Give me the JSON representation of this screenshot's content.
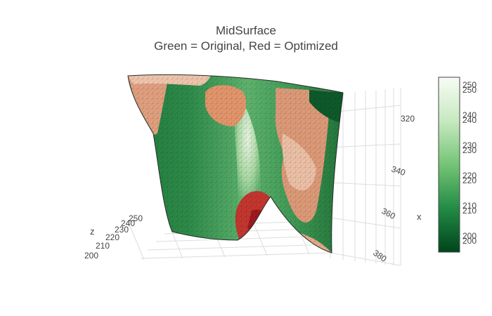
{
  "chart_data": {
    "type": "surface",
    "title_line_1": "MidSurface",
    "title_line_2": "Green = Original, Red = Optimized",
    "axes": {
      "x": {
        "label": "x",
        "ticks": [
          320,
          340,
          360,
          380
        ]
      },
      "y": {
        "label": "",
        "ticks": []
      },
      "z": {
        "label": "z",
        "ticks": [
          200,
          210,
          220,
          230,
          240,
          250
        ]
      }
    },
    "colorbar": {
      "colorscale": "Greens",
      "range": [
        196,
        254
      ],
      "tick_pairs": [
        {
          "labels": [
            "250",
            "250"
          ]
        },
        {
          "labels": [
            "240",
            "240"
          ]
        },
        {
          "labels": [
            "230",
            "230"
          ]
        },
        {
          "labels": [
            "220",
            "220"
          ]
        },
        {
          "labels": [
            "210",
            "210"
          ]
        },
        {
          "labels": [
            "200",
            "200"
          ]
        }
      ]
    },
    "series": [
      {
        "name": "Green = Original",
        "colorscale": "Greens"
      },
      {
        "name": "Red = Optimized",
        "colorscale": "Reds"
      }
    ],
    "grid": true,
    "colors": {
      "green_dark": "#00441b",
      "green_mid": "#41ab5d",
      "green_light": "#c7e9c0",
      "red_dark": "#b42025",
      "salmon": "#e0956e",
      "peach": "#f0bfa3"
    }
  }
}
